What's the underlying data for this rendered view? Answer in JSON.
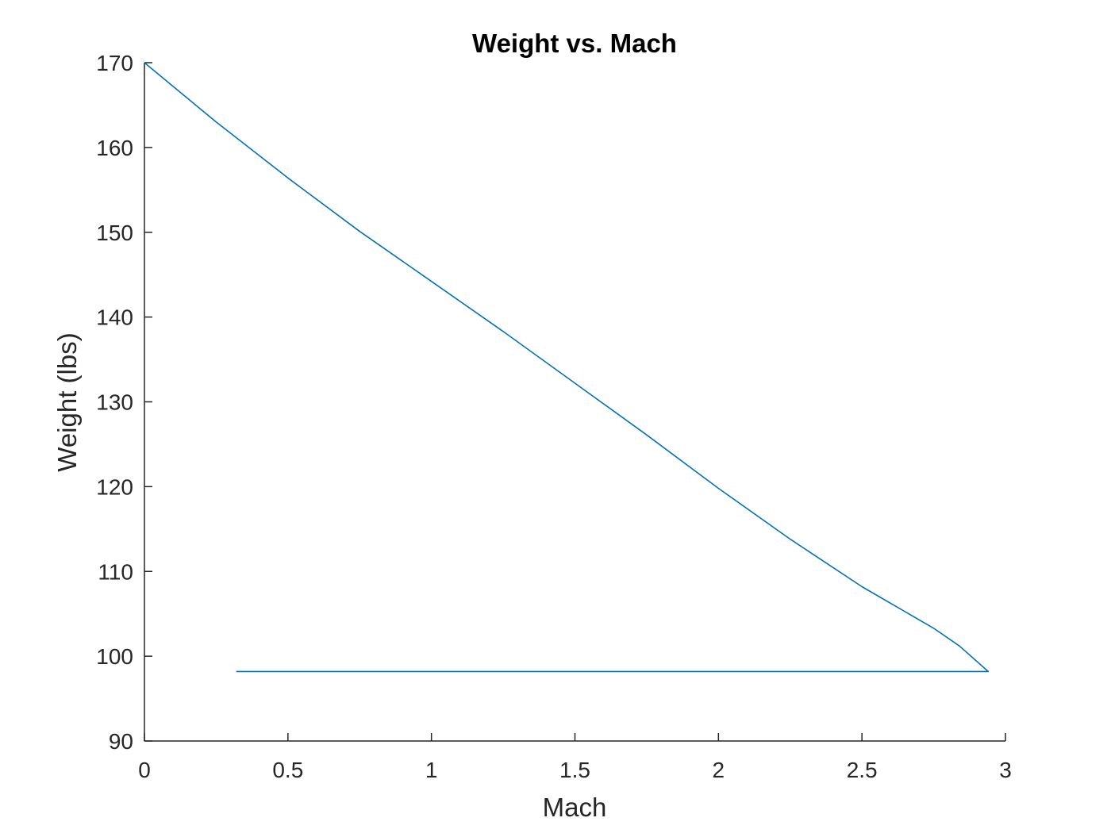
{
  "chart_data": {
    "type": "line",
    "title": "Weight vs. Mach",
    "xlabel": "Mach",
    "ylabel": "Weight (lbs)",
    "xlim": [
      0,
      3
    ],
    "ylim": [
      90,
      170
    ],
    "xticks": [
      0,
      0.5,
      1,
      1.5,
      2,
      2.5,
      3
    ],
    "xtick_labels": [
      "0",
      "0.5",
      "1",
      "1.5",
      "2",
      "2.5",
      "3"
    ],
    "yticks": [
      90,
      100,
      110,
      120,
      130,
      140,
      150,
      160,
      170
    ],
    "ytick_labels": [
      "90",
      "100",
      "110",
      "120",
      "130",
      "140",
      "150",
      "160",
      "170"
    ],
    "grid": false,
    "legend": "none",
    "series": [
      {
        "color": "#0072bd",
        "x": [
          0,
          0.25,
          0.5,
          0.75,
          1.0,
          1.25,
          1.5,
          1.75,
          2.0,
          2.25,
          2.5,
          2.75,
          2.84,
          2.94,
          0.32
        ],
        "y": [
          170,
          163.0,
          156.4,
          150.1,
          144.2,
          138.3,
          132.2,
          126.1,
          119.8,
          113.8,
          108.2,
          103.3,
          101.2,
          98.2,
          98.2
        ]
      }
    ]
  }
}
